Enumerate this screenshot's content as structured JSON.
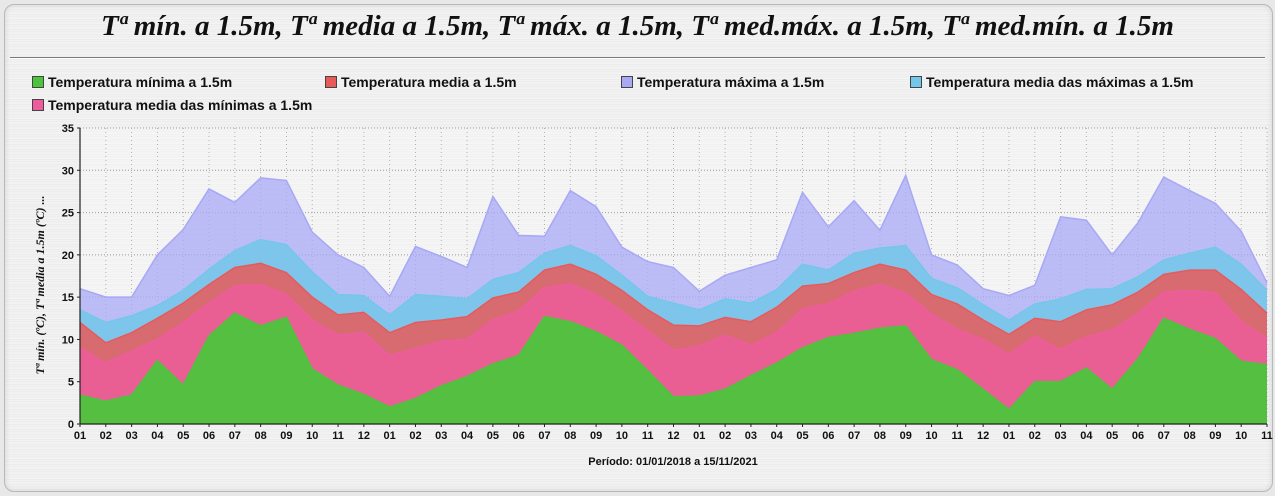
{
  "chart_data": {
    "type": "area",
    "title": "Tª mín. a 1.5m, Tª media a 1.5m, Tª máx. a 1.5m, Tª med.máx. a 1.5m, Tª  med.mín. a 1.5m",
    "xlabel": "Período: 01/01/2018 a 15/11/2021",
    "ylabel": "Tª mín. (ºC), Tª media a 1.5m (ºC) ...",
    "ylim": [
      0,
      35
    ],
    "yticks": [
      "0",
      "5",
      "10",
      "15",
      "20",
      "25",
      "30",
      "35"
    ],
    "categories": [
      "01",
      "02",
      "03",
      "04",
      "05",
      "06",
      "07",
      "08",
      "09",
      "10",
      "11",
      "12",
      "01",
      "02",
      "03",
      "04",
      "05",
      "06",
      "07",
      "08",
      "09",
      "10",
      "11",
      "12",
      "01",
      "02",
      "03",
      "04",
      "05",
      "06",
      "07",
      "08",
      "09",
      "10",
      "11",
      "12",
      "01",
      "02",
      "03",
      "04",
      "05",
      "06",
      "07",
      "08",
      "09",
      "10",
      "11"
    ],
    "grid": true,
    "legend_position": "top",
    "series": [
      {
        "name": "Temperatura máxima a 1.5m",
        "color": "#a8a8f5",
        "values": [
          16,
          15,
          15,
          20,
          23,
          27.8,
          26.2,
          29.1,
          28.8,
          22.7,
          20,
          18.5,
          15.1,
          21,
          19.8,
          18.5,
          26.9,
          22.3,
          22.2,
          27.6,
          25.7,
          20.9,
          19.2,
          18.5,
          15.7,
          17.6,
          18.5,
          19.4,
          27.4,
          23.3,
          26.4,
          22.9,
          29.4,
          20,
          18.8,
          16,
          15.2,
          16.4,
          24.5,
          24.1,
          20,
          23.8,
          29.2,
          27.6,
          26.1,
          22.8,
          16.7
        ]
      },
      {
        "name": "Temperatura media das máximas a 1.5m",
        "color": "#73c7ea",
        "values": [
          13.5,
          12,
          12.8,
          14,
          15.8,
          18.3,
          20.5,
          21.8,
          21.2,
          18,
          15.3,
          15.2,
          12.9,
          15.3,
          15.1,
          14.8,
          17.1,
          17.9,
          20.2,
          21.1,
          19.9,
          17.6,
          15.1,
          14.3,
          13.5,
          14.8,
          14.3,
          15.9,
          18.9,
          18.2,
          20.2,
          20.8,
          21.1,
          17.2,
          16.1,
          14.1,
          12.3,
          14.2,
          14.8,
          15.9,
          16,
          17.4,
          19.4,
          20.2,
          20.9,
          18.9,
          15.8
        ]
      },
      {
        "name": "Temperatura media a 1.5m",
        "color": "#e85a5a",
        "values": [
          12,
          9.6,
          10.8,
          12.5,
          14.3,
          16.5,
          18.5,
          19,
          17.9,
          15,
          12.9,
          13.2,
          10.8,
          12,
          12.3,
          12.7,
          14.9,
          15.6,
          18.2,
          18.9,
          17.7,
          15.8,
          13.5,
          11.7,
          11.6,
          12.6,
          12.1,
          13.8,
          16.3,
          16.6,
          17.9,
          18.9,
          18.2,
          15.3,
          14.2,
          12.3,
          10.6,
          12.5,
          12.1,
          13.5,
          14.1,
          15.6,
          17.7,
          18.2,
          18.2,
          15.9,
          13.1
        ]
      },
      {
        "name": "Temperatura  media das mínimas a 1.5m",
        "color": "#ee5c9e",
        "values": [
          9,
          7.2,
          8.6,
          10,
          12,
          14.3,
          16.3,
          16.5,
          15.3,
          12.3,
          10.5,
          10.8,
          8.1,
          8.9,
          9.8,
          10,
          12.3,
          13.4,
          16.1,
          16.6,
          15.3,
          13.3,
          11,
          8.7,
          9.2,
          10.5,
          9.3,
          10.8,
          13.6,
          14.2,
          15.7,
          16.5,
          15.5,
          13,
          11.2,
          10,
          8.2,
          10.4,
          8.8,
          10.3,
          11.1,
          13.1,
          15.6,
          15.8,
          15.5,
          12.1,
          10.1
        ]
      },
      {
        "name": "Temperatura mínima a 1.5m",
        "color": "#4cc43c",
        "values": [
          3.4,
          2.7,
          3.4,
          7.5,
          4.6,
          10.4,
          13.1,
          11.6,
          12.6,
          6.5,
          4.6,
          3.5,
          2,
          3,
          4.5,
          5.6,
          7.1,
          8.1,
          12.7,
          12.1,
          10.9,
          9.3,
          6.3,
          3.2,
          3.3,
          4.1,
          5.7,
          7.2,
          9,
          10.2,
          10.7,
          11.3,
          11.6,
          7.6,
          6.4,
          4.1,
          1.7,
          5,
          5,
          6.6,
          4.1,
          7.7,
          12.5,
          11.2,
          10.1,
          7.4,
          7
        ]
      }
    ]
  },
  "legend": [
    {
      "label": "Temperatura mínima a 1.5m",
      "color": "#4cc43c"
    },
    {
      "label": "Temperatura media a 1.5m",
      "color": "#e85a5a"
    },
    {
      "label": "Temperatura máxima a 1.5m",
      "color": "#a8a8f5"
    },
    {
      "label": "Temperatura media das máximas a 1.5m",
      "color": "#73c7ea"
    },
    {
      "label": "Temperatura  media das mínimas a 1.5m",
      "color": "#ee5c9e"
    }
  ]
}
